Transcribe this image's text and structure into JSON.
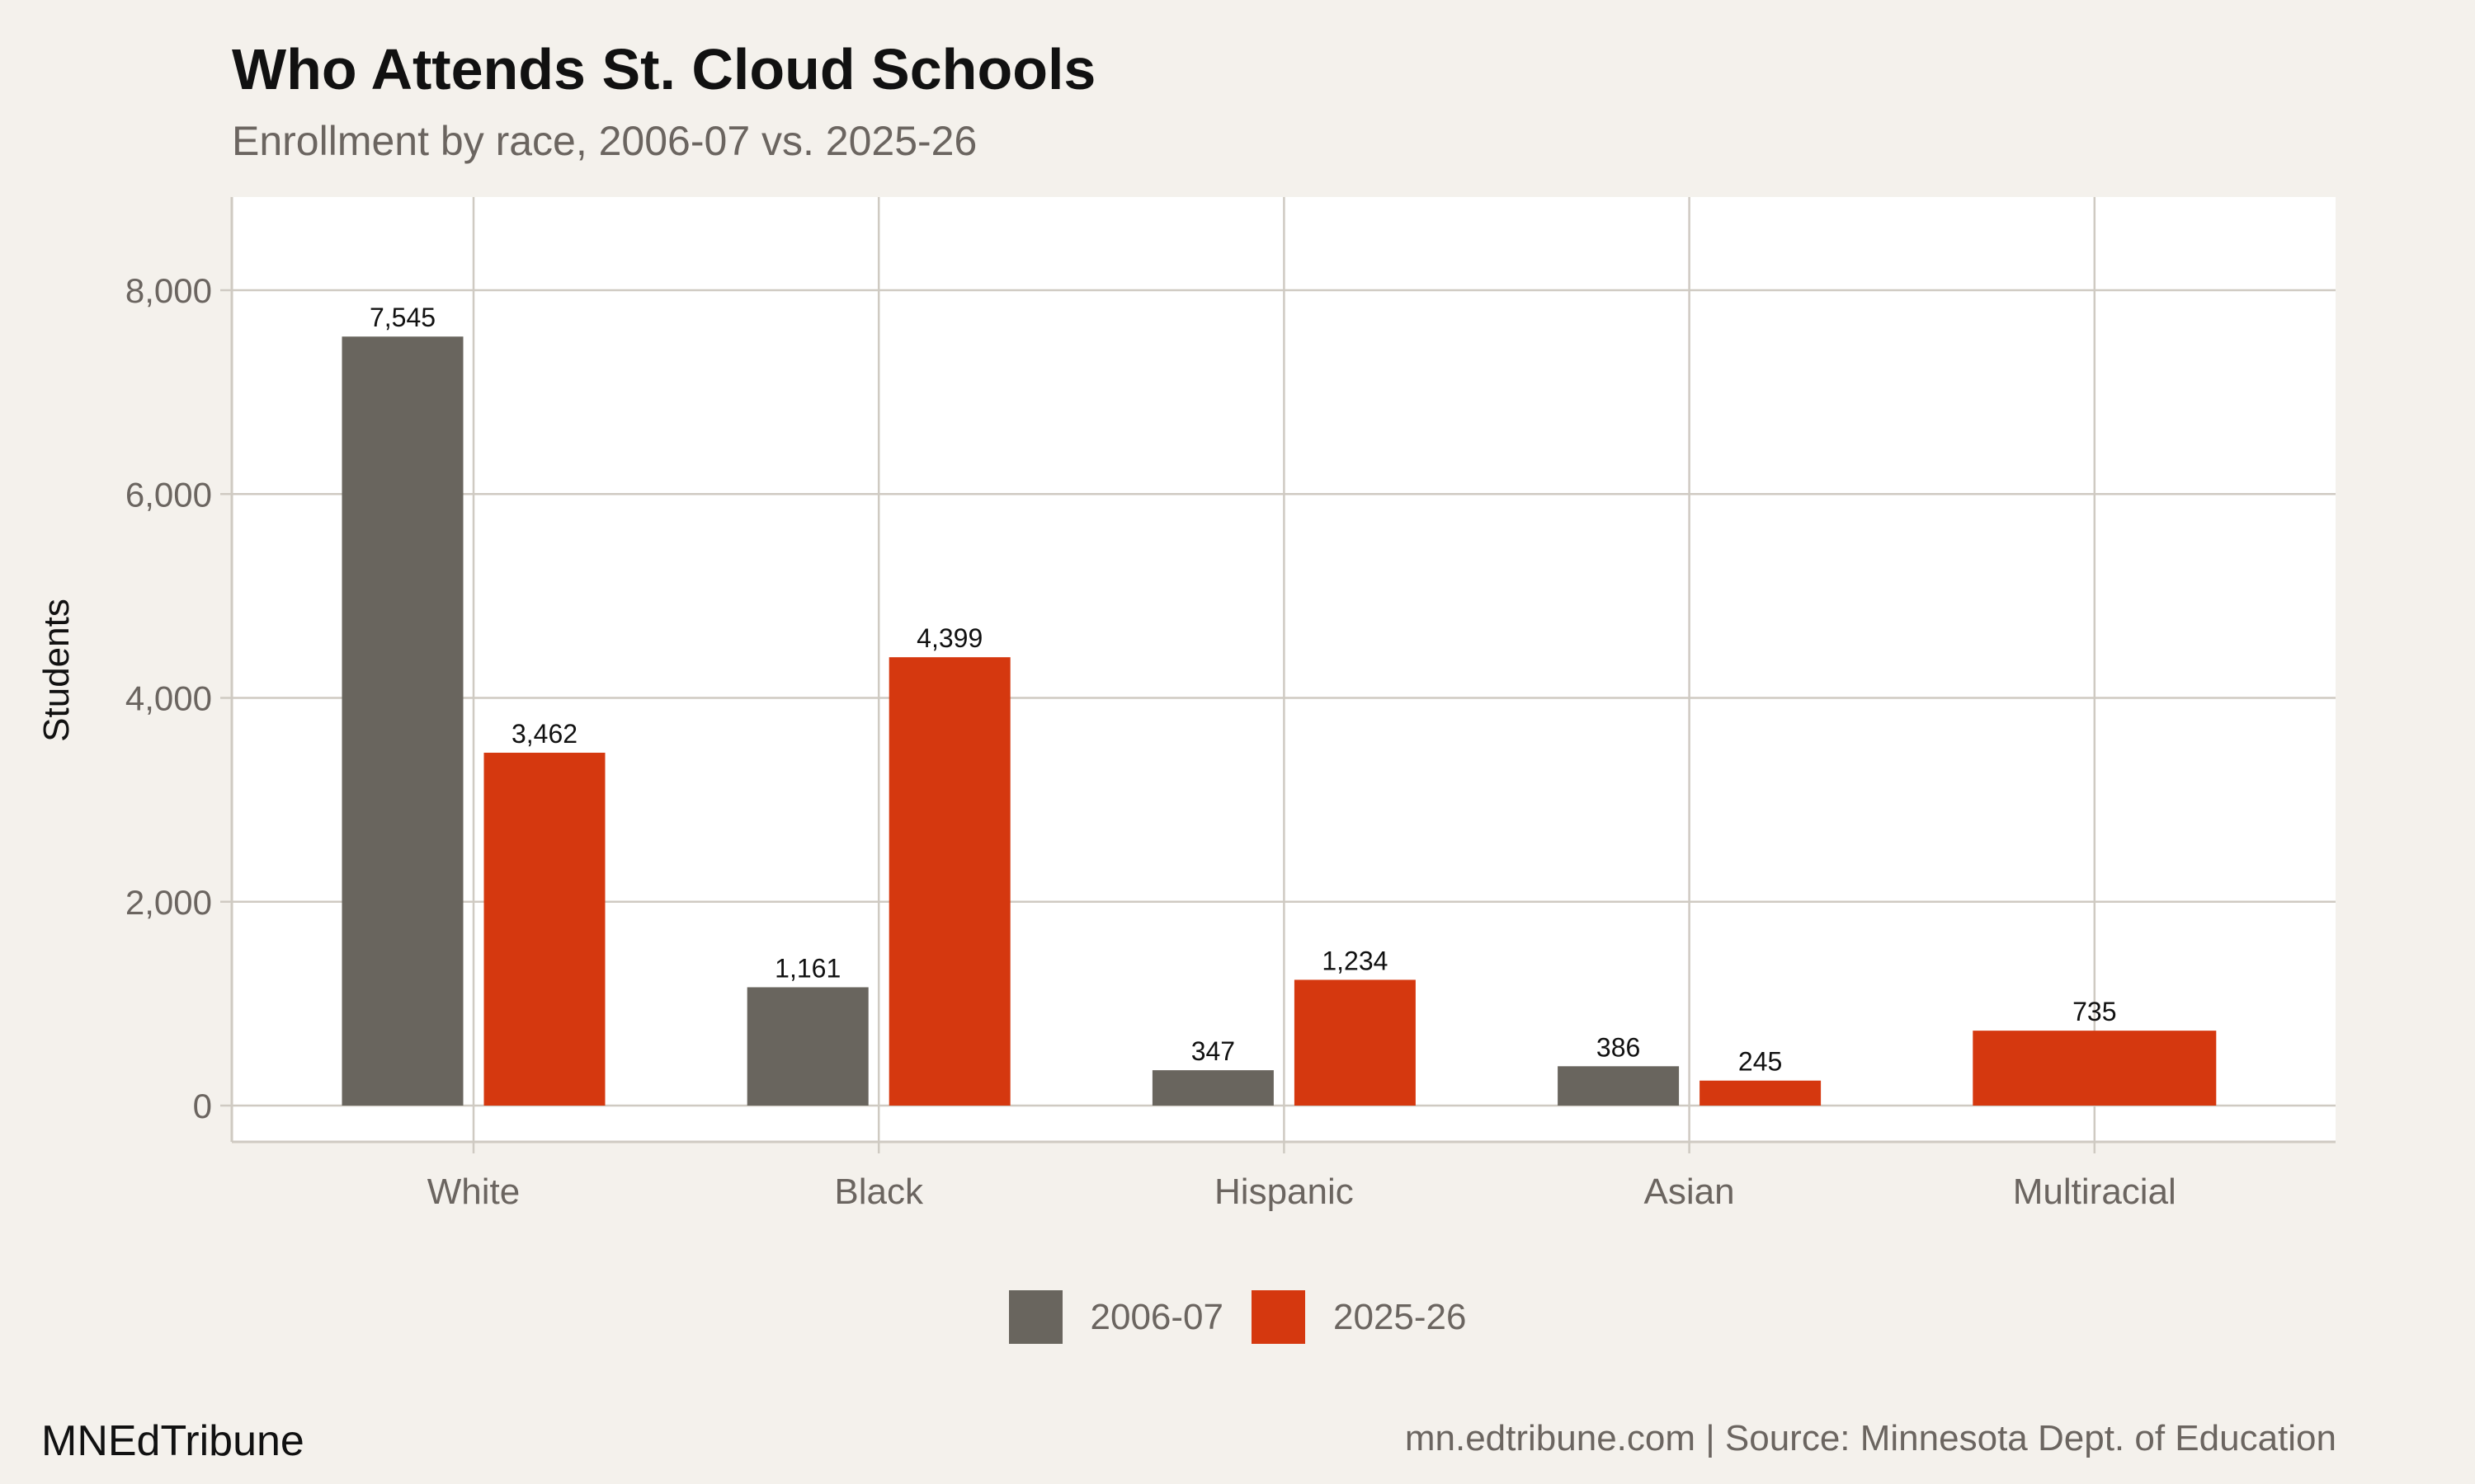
{
  "chart_data": {
    "type": "bar",
    "title": "Who Attends St. Cloud Schools",
    "subtitle": "Enrollment by race, 2006-07 vs. 2025-26",
    "xlabel": "",
    "ylabel": "Students",
    "categories": [
      "White",
      "Black",
      "Hispanic",
      "Asian",
      "Multiracial"
    ],
    "series": [
      {
        "name": "2006-07",
        "color": "#69655e",
        "values": [
          7545,
          1161,
          347,
          386,
          null
        ]
      },
      {
        "name": "2025-26",
        "color": "#d5380f",
        "values": [
          3462,
          4399,
          1234,
          245,
          735
        ]
      }
    ],
    "data_labels": [
      [
        "7,545",
        "1,161",
        "347",
        "386",
        ""
      ],
      [
        "3,462",
        "4,399",
        "1,234",
        "245",
        "735"
      ]
    ],
    "yticks": [
      0,
      2000,
      4000,
      6000,
      8000
    ],
    "ytick_labels": [
      "0",
      "2,000",
      "4,000",
      "6,000",
      "8,000"
    ],
    "ylim": [
      -350,
      8900
    ],
    "grid": true,
    "legend_position": "bottom",
    "caption_left": "MNEdTribune",
    "caption_right": "mn.edtribune.com | Source: Minnesota Dept. of Education"
  }
}
